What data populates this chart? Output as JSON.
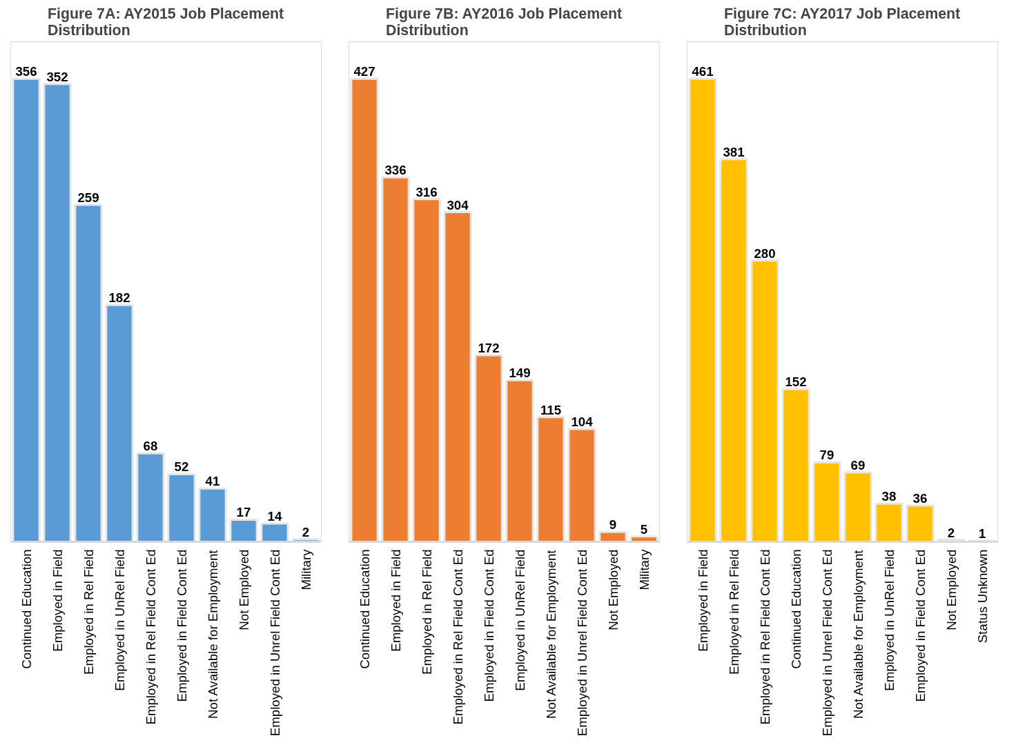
{
  "chart_data": [
    {
      "type": "bar",
      "title": "Figure 7A: AY2015 Job Placement Distribution",
      "categories": [
        "Continued Education",
        "Employed in Field",
        "Employed in Rel Field",
        "Employed in UnRel Field",
        "Employed in Rel Field Cont Ed",
        "Employed in Field Cont Ed",
        "Not Available for Employment",
        "Not Employed",
        "Employed in Unrel Field Cont Ed",
        "Military"
      ],
      "values": [
        356,
        352,
        259,
        182,
        68,
        52,
        41,
        17,
        14,
        2
      ],
      "color": "#5b9bd5",
      "data_labels": true,
      "tick_labels": "x"
    },
    {
      "type": "bar",
      "title": "Figure 7B: AY2016 Job Placement Distribution",
      "categories": [
        "Continued Education",
        "Employed in Field",
        "Employed in Rel Field",
        "Employed in Rel Field Cont Ed",
        "Employed in Field Cont Ed",
        "Employed in UnRel Field",
        "Not Available for Employment",
        "Employed in Unrel Field Cont Ed",
        "Not Employed",
        "Military"
      ],
      "values": [
        427,
        336,
        316,
        304,
        172,
        149,
        115,
        104,
        9,
        5
      ],
      "color": "#ed7d31",
      "data_labels": true,
      "tick_labels": "x"
    },
    {
      "type": "bar",
      "title": "Figure 7C: AY2017 Job Placement Distribution",
      "categories": [
        "Employed in Field",
        "Employed in Rel Field",
        "Employed in Rel Field Cont Ed",
        "Continued Education",
        "Employed in Unrel Field Cont Ed",
        "Not Available for Employment",
        "Employed in UnRel Field",
        "Employed in Field Cont Ed",
        "Not Employed",
        "Status Unknown"
      ],
      "values": [
        461,
        381,
        280,
        152,
        79,
        69,
        38,
        36,
        2,
        1
      ],
      "color": "#ffc000",
      "data_labels": true,
      "tick_labels": "x"
    }
  ]
}
